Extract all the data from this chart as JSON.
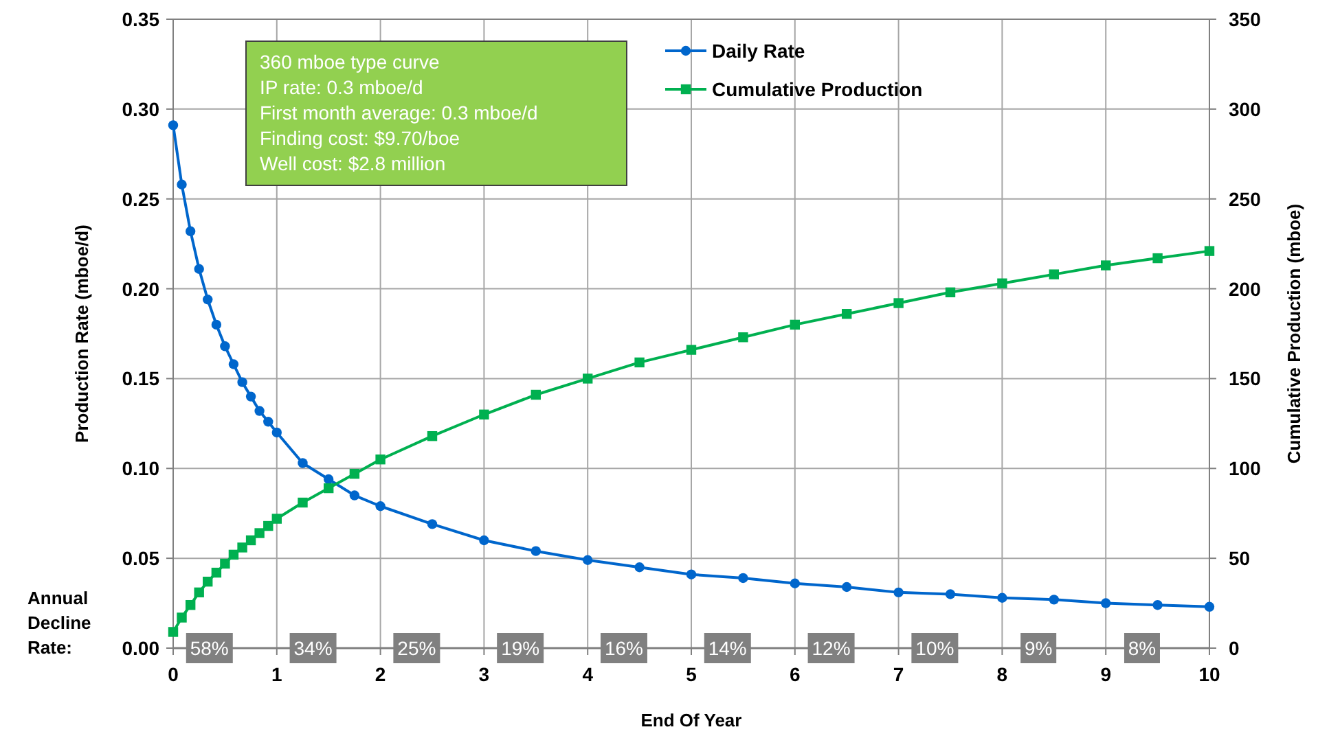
{
  "chart_data": {
    "type": "line",
    "xlabel": "End Of Year",
    "ylabel": "Production Rate (mboe/d)",
    "y2label": "Cumulative Production (mboe)",
    "xlim": [
      0,
      10
    ],
    "xticks": [
      0,
      1,
      2,
      3,
      4,
      5,
      6,
      7,
      8,
      9,
      10
    ],
    "ylim": [
      0,
      0.35
    ],
    "yticks": [
      {
        "value": 0,
        "label": "0.00"
      },
      {
        "value": 0.05,
        "label": "0.05"
      },
      {
        "value": 0.1,
        "label": "0.10"
      },
      {
        "value": 0.15,
        "label": "0.15"
      },
      {
        "value": 0.2,
        "label": "0.20"
      },
      {
        "value": 0.25,
        "label": "0.25"
      },
      {
        "value": 0.3,
        "label": "0.30"
      },
      {
        "value": 0.35,
        "label": "0.35"
      }
    ],
    "y2lim": [
      0,
      350
    ],
    "y2ticks": [
      0,
      50,
      100,
      150,
      200,
      250,
      300,
      350
    ],
    "grid": true,
    "legend": "top",
    "series": [
      {
        "name": "Daily Rate",
        "color": "#0066cc",
        "marker": "circle",
        "x": [
          0,
          0.083,
          0.167,
          0.25,
          0.333,
          0.417,
          0.5,
          0.583,
          0.667,
          0.75,
          0.833,
          0.917,
          1,
          1.25,
          1.5,
          1.75,
          2,
          2.5,
          3,
          3.5,
          4,
          4.5,
          5,
          5.5,
          6,
          6.5,
          7,
          7.5,
          8,
          8.5,
          9,
          9.5,
          10
        ],
        "values": [
          0.291,
          0.258,
          0.232,
          0.211,
          0.194,
          0.18,
          0.168,
          0.158,
          0.148,
          0.14,
          0.132,
          0.126,
          0.12,
          0.103,
          0.094,
          0.085,
          0.079,
          0.069,
          0.06,
          0.054,
          0.049,
          0.045,
          0.041,
          0.039,
          0.036,
          0.034,
          0.031,
          0.03,
          0.028,
          0.027,
          0.025,
          0.024,
          0.023
        ]
      },
      {
        "name": "Cumulative Production",
        "color": "#00b050",
        "marker": "square",
        "axis": "y2",
        "x": [
          0,
          0.083,
          0.167,
          0.25,
          0.333,
          0.417,
          0.5,
          0.583,
          0.667,
          0.75,
          0.833,
          0.917,
          1,
          1.25,
          1.5,
          1.75,
          2,
          2.5,
          3,
          3.5,
          4,
          4.5,
          5,
          5.5,
          6,
          6.5,
          7,
          7.5,
          8,
          8.5,
          9,
          9.5,
          10
        ],
        "values": [
          9,
          17,
          24,
          31,
          37,
          42,
          47,
          52,
          56,
          60,
          64,
          68,
          72,
          81,
          89,
          97,
          105,
          118,
          130,
          141,
          150,
          159,
          166,
          173,
          180,
          186,
          192,
          198,
          203,
          208,
          213,
          217,
          221
        ]
      }
    ],
    "annotations": [
      "360 mboe type curve\nIP rate: 0.3 mboe/d\nFirst month average: 0.3 mboe/d\nFinding cost: $9.70/boe\nWell cost: $2.8 million",
      "Annual\nDecline\nRate:",
      {
        "text": "58%",
        "x": 0.35,
        "y": 0
      },
      {
        "text": "34%",
        "x": 1.35,
        "y": 0
      },
      {
        "text": "25%",
        "x": 2.35,
        "y": 0
      },
      {
        "text": "19%",
        "x": 3.35,
        "y": 0
      },
      {
        "text": "16%",
        "x": 4.35,
        "y": 0
      },
      {
        "text": "14%",
        "x": 5.35,
        "y": 0
      },
      {
        "text": "12%",
        "x": 6.35,
        "y": 0
      },
      {
        "text": "10%",
        "x": 7.35,
        "y": 0
      },
      {
        "text": "9%",
        "x": 8.35,
        "y": 0
      },
      {
        "text": "8%",
        "x": 9.35,
        "y": 0
      }
    ]
  }
}
